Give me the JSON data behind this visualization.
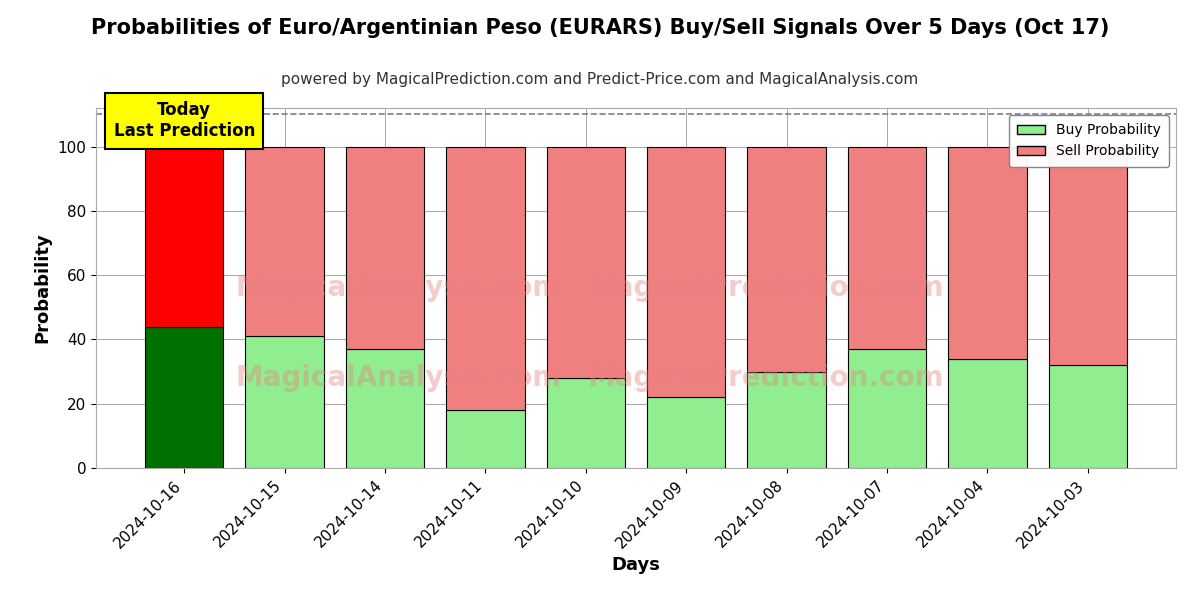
{
  "title": "Probabilities of Euro/Argentinian Peso (EURARS) Buy/Sell Signals Over 5 Days (Oct 17)",
  "subtitle": "powered by MagicalPrediction.com and Predict-Price.com and MagicalAnalysis.com",
  "xlabel": "Days",
  "ylabel": "Probability",
  "dates": [
    "2024-10-16",
    "2024-10-15",
    "2024-10-14",
    "2024-10-11",
    "2024-10-10",
    "2024-10-09",
    "2024-10-08",
    "2024-10-07",
    "2024-10-04",
    "2024-10-03"
  ],
  "buy_values": [
    44,
    41,
    37,
    18,
    28,
    22,
    30,
    37,
    34,
    32
  ],
  "sell_values": [
    56,
    59,
    63,
    82,
    72,
    78,
    70,
    63,
    66,
    68
  ],
  "buy_color_today": "#007000",
  "sell_color_today": "#ff0000",
  "buy_color_rest": "#90EE90",
  "sell_color_rest": "#F08080",
  "bar_edge_color": "#000000",
  "ylim": [
    0,
    112
  ],
  "yticks": [
    0,
    20,
    40,
    60,
    80,
    100
  ],
  "dashed_line_y": 110,
  "today_label": "Today\nLast Prediction",
  "legend_buy": "Buy Probability",
  "legend_sell": "Sell Probability",
  "background_color": "#ffffff",
  "grid_color": "#aaaaaa",
  "title_fontsize": 15,
  "subtitle_fontsize": 11,
  "axis_label_fontsize": 13,
  "tick_fontsize": 11
}
